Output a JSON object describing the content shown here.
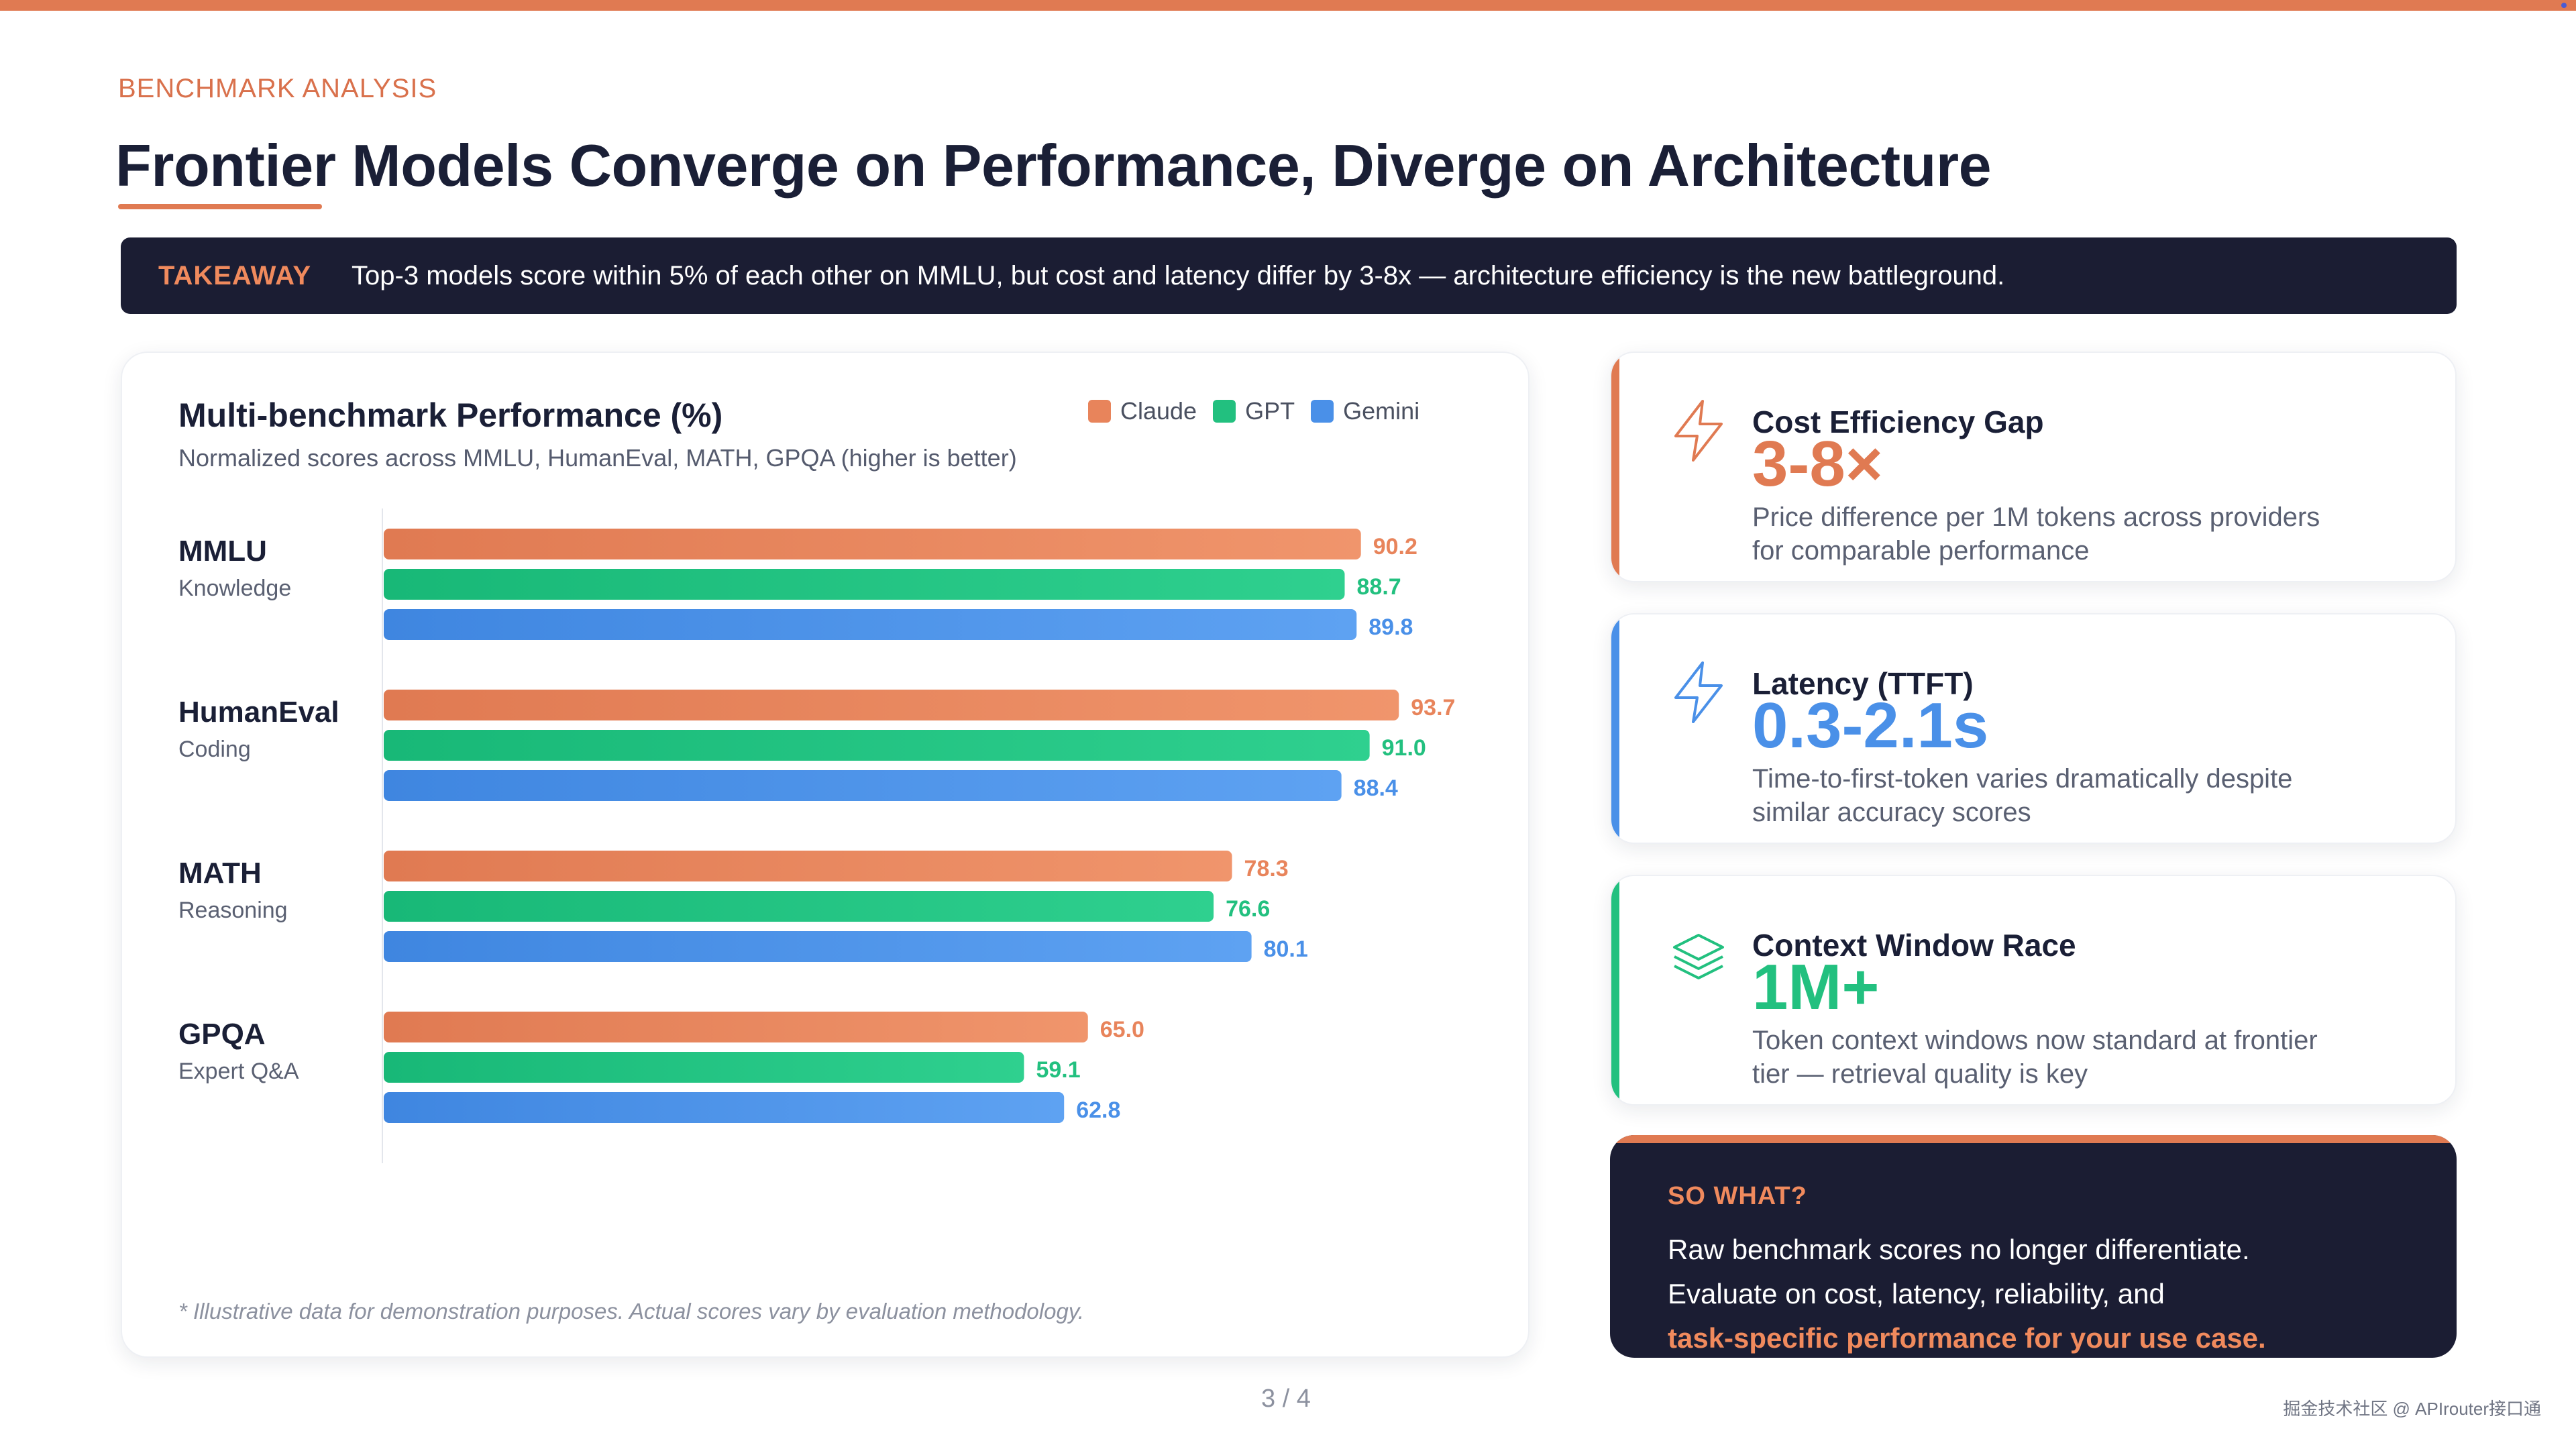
{
  "header": {
    "eyebrow": "BENCHMARK ANALYSIS",
    "title": "Frontier Models Converge on Performance, Diverge on Architecture"
  },
  "takeaway": {
    "label": "TAKEAWAY",
    "text": "Top-3 models score within 5% of each other on MMLU, but cost and latency differ by 3-8x — architecture efficiency is the new battleground."
  },
  "chart_data": {
    "type": "bar",
    "orientation": "horizontal",
    "title": "Multi-benchmark Performance (%)",
    "subtitle": "Normalized scores across MMLU, HumanEval, MATH, GPQA (higher is better)",
    "categories": [
      {
        "name": "MMLU",
        "sub": "Knowledge"
      },
      {
        "name": "HumanEval",
        "sub": "Coding"
      },
      {
        "name": "MATH",
        "sub": "Reasoning"
      },
      {
        "name": "GPQA",
        "sub": "Expert Q&A"
      }
    ],
    "series": [
      {
        "name": "Claude",
        "color": "#e8845b",
        "values": [
          90.2,
          93.7,
          78.3,
          65.0
        ]
      },
      {
        "name": "GPT",
        "color": "#22c07f",
        "values": [
          88.7,
          91.0,
          76.6,
          59.1
        ]
      },
      {
        "name": "Gemini",
        "color": "#4a90e8",
        "values": [
          89.8,
          88.4,
          80.1,
          62.8
        ]
      }
    ],
    "xlim": [
      0,
      100
    ],
    "legend_position": "top-right",
    "footnote": "* Illustrative data for demonstration purposes. Actual scores vary by evaluation methodology."
  },
  "stats": [
    {
      "title": "Cost Efficiency Gap",
      "value": "3-8×",
      "desc": "Price difference per 1M tokens across providers for comparable performance",
      "color": "#e07a52",
      "icon": "lightning-icon"
    },
    {
      "title": "Latency (TTFT)",
      "value": "0.3-2.1s",
      "desc": "Time-to-first-token varies dramatically despite similar accuracy scores",
      "color": "#4a90e8",
      "icon": "lightning-icon"
    },
    {
      "title": "Context Window Race",
      "value": "1M+",
      "desc": "Token context windows now standard at frontier tier — retrieval quality is key",
      "color": "#22c07f",
      "icon": "layers-icon"
    }
  ],
  "sowhat": {
    "label": "SO WHAT?",
    "line1": "Raw benchmark scores no longer differentiate.",
    "line2": "Evaluate on cost, latency, reliability, and",
    "highlight": "task-specific performance for your use case."
  },
  "footer": {
    "page": "3 / 4",
    "watermark": "掘金技术社区 @ APIrouter接口通"
  }
}
